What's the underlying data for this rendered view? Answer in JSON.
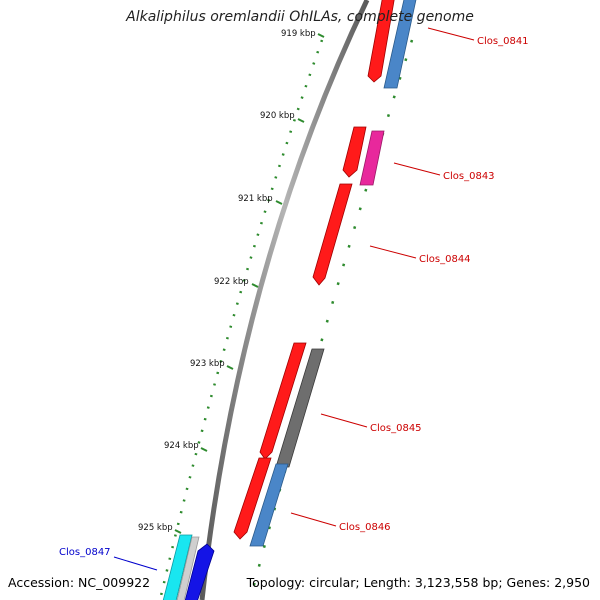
{
  "title": "Alkaliphilus oremlandii OhILAs, complete genome",
  "footer": {
    "accession": "Accession: NC_009922",
    "topology": "Topology: circular; Length: 3,123,558 bp; Genes: 2,950"
  },
  "colors": {
    "backbone": "#7f7f7f",
    "ruler": "#2e8b2e",
    "label_red": "#cc0000",
    "label_blue": "#0000cc",
    "gene_red": "#ff1a1a",
    "gene_steelblue": "#4a86c8",
    "gene_magenta": "#e8289c",
    "gene_gray": "#6e6e6e",
    "gene_cyan": "#19e6f0",
    "gene_blue": "#1414e6",
    "gene_lightgray": "#cfcfcf"
  },
  "ruler": [
    {
      "label": "919 kbp"
    },
    {
      "label": "920 kbp"
    },
    {
      "label": "921 kbp"
    },
    {
      "label": "922 kbp"
    },
    {
      "label": "923 kbp"
    },
    {
      "label": "924 kbp"
    },
    {
      "label": "925 kbp"
    }
  ],
  "gene_labels": [
    {
      "text": "Clos_0841",
      "color": "red"
    },
    {
      "text": "Clos_0843",
      "color": "red"
    },
    {
      "text": "Clos_0844",
      "color": "red"
    },
    {
      "text": "Clos_0845",
      "color": "red"
    },
    {
      "text": "Clos_0846",
      "color": "red"
    },
    {
      "text": "Clos_0847",
      "color": "blue"
    }
  ]
}
